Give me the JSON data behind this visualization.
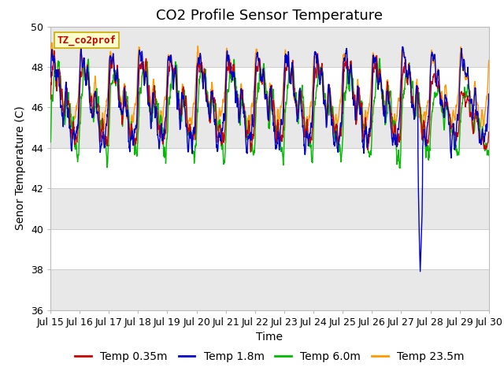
{
  "title": "CO2 Profile Sensor Temperature",
  "xlabel": "Time",
  "ylabel": "Senor Temperature (C)",
  "ylim": [
    36,
    50
  ],
  "yticks": [
    36,
    38,
    40,
    42,
    44,
    46,
    48,
    50
  ],
  "x_tick_labels": [
    "Jul 15",
    "Jul 16",
    "Jul 17",
    "Jul 18",
    "Jul 19",
    "Jul 20",
    "Jul 21",
    "Jul 22",
    "Jul 23",
    "Jul 24",
    "Jul 25",
    "Jul 26",
    "Jul 27",
    "Jul 28",
    "Jul 29",
    "Jul 30"
  ],
  "legend_box_label": "TZ_co2prof",
  "legend_box_bg": "#ffffcc",
  "legend_box_edge": "#ccaa00",
  "legend_box_text": "#cc0000",
  "line_colors": [
    "#cc0000",
    "#0000cc",
    "#00bb00",
    "#ff9900"
  ],
  "line_labels": [
    "Temp 0.35m",
    "Temp 1.8m",
    "Temp 6.0m",
    "Temp 23.5m"
  ],
  "bg_color": "#ffffff",
  "plot_bg": "#ffffff",
  "band_color_light": "#e8e8e8",
  "band_color_dark": "#d0d0d0",
  "title_fontsize": 13,
  "axis_fontsize": 10,
  "tick_fontsize": 9,
  "legend_fontsize": 10,
  "grid_color": "#cccccc",
  "spike_day": 12.65,
  "spike_value": 37.9
}
